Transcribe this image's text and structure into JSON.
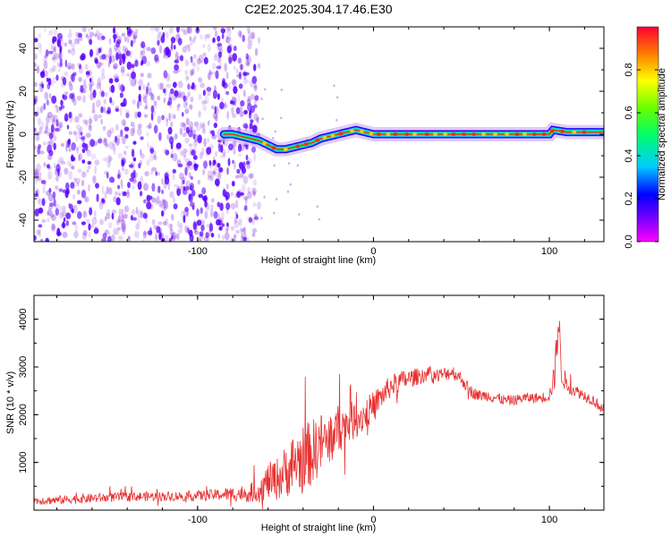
{
  "title": "C2E2.2025.304.17.46.E30",
  "colors": {
    "snr_line": "#e83030",
    "signal_sparse": "#7a1fe0",
    "signal_dense": "#5a00ff"
  },
  "chart_data": [
    {
      "type": "heatmap",
      "xlabel": "Height of straight line (km)",
      "ylabel": "Frequency (Hz)",
      "xlim": [
        -193,
        131
      ],
      "ylim": [
        -50,
        50
      ],
      "x_ticks": [
        -100,
        0,
        100
      ],
      "x_tick_labels": [
        "-100",
        "0",
        "100"
      ],
      "y_ticks": [
        -40,
        -20,
        0,
        20,
        40
      ],
      "y_tick_labels": [
        "-40",
        "-20",
        "0",
        "20",
        "40"
      ],
      "colorbar": {
        "label": "Normalized spectral amplitude",
        "range": [
          0,
          1
        ],
        "ticks": [
          0,
          0.2,
          0.4,
          0.6,
          0.8
        ],
        "tick_labels": [
          "0.0",
          "0.2",
          "0.4",
          "0.6",
          "0.8"
        ],
        "colormap": "rainbow"
      },
      "noise_region_x": [
        -193,
        -65
      ],
      "signal_track": {
        "x": [
          -85,
          -80,
          -75,
          -70,
          -65,
          -60,
          -55,
          -50,
          -45,
          -40,
          -35,
          -30,
          -25,
          -20,
          -15,
          -10,
          -5,
          0,
          10,
          20,
          40,
          60,
          80,
          100,
          102,
          110,
          131
        ],
        "frequency": [
          0,
          0,
          -1,
          -2,
          -3,
          -5,
          -7,
          -7,
          -6,
          -5,
          -4,
          -2,
          -1,
          0,
          1,
          2,
          1,
          0,
          0,
          0,
          0,
          0,
          0,
          0,
          2,
          1,
          1
        ]
      }
    },
    {
      "type": "line",
      "xlabel": "Height of straight line (km)",
      "ylabel": "SNR (10 * v/v)",
      "xlim": [
        -193,
        131
      ],
      "ylim": [
        0,
        4500
      ],
      "x_ticks": [
        -100,
        0,
        100
      ],
      "x_tick_labels": [
        "-100",
        "0",
        "100"
      ],
      "y_ticks": [
        1000,
        2000,
        3000,
        4000
      ],
      "y_tick_labels": [
        "1000",
        "2000",
        "3000",
        "4000"
      ],
      "series": [
        {
          "x": [
            -193,
            -180,
            -160,
            -140,
            -120,
            -100,
            -90,
            -80,
            -70,
            -65,
            -60,
            -55,
            -50,
            -45,
            -40,
            -35,
            -30,
            -25,
            -20,
            -15,
            -10,
            -5,
            0,
            5,
            10,
            15,
            20,
            25,
            30,
            35,
            40,
            45,
            50,
            55,
            60,
            65,
            70,
            75,
            80,
            85,
            90,
            95,
            100,
            103,
            105,
            107,
            110,
            115,
            120,
            125,
            131
          ],
          "values": [
            200,
            210,
            250,
            280,
            290,
            300,
            320,
            340,
            360,
            420,
            600,
            650,
            800,
            1000,
            1100,
            1200,
            1400,
            1500,
            1700,
            1800,
            1900,
            2000,
            2200,
            2400,
            2600,
            2700,
            2750,
            2800,
            2850,
            2800,
            2850,
            2900,
            2750,
            2500,
            2400,
            2400,
            2350,
            2300,
            2300,
            2350,
            2350,
            2350,
            2400,
            2800,
            4000,
            2900,
            2600,
            2500,
            2400,
            2300,
            2100
          ],
          "noise_amplitude": [
            90,
            90,
            100,
            100,
            100,
            110,
            120,
            150,
            200,
            260,
            380,
            450,
            550,
            650,
            700,
            700,
            650,
            600,
            520,
            450,
            400,
            350,
            300,
            260,
            240,
            220,
            200,
            180,
            170,
            160,
            150,
            150,
            140,
            130,
            120,
            120,
            120,
            110,
            110,
            110,
            110,
            110,
            130,
            300,
            600,
            300,
            160,
            130,
            120,
            120,
            120
          ]
        }
      ]
    }
  ]
}
